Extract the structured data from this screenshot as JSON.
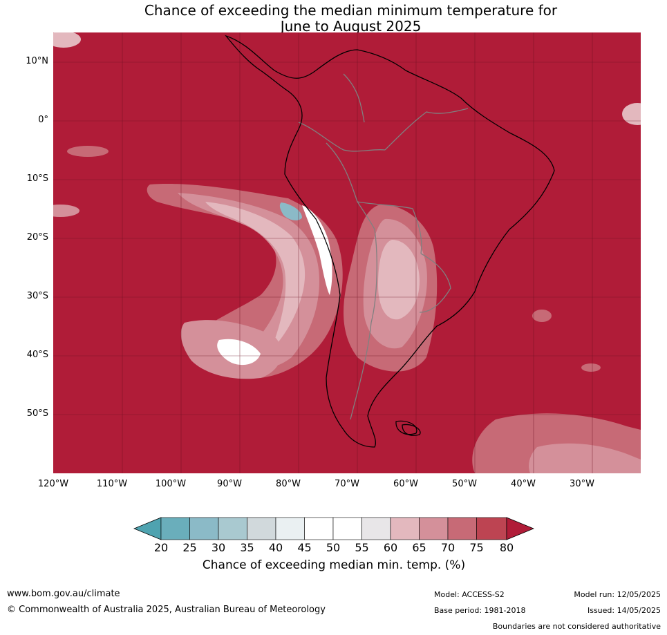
{
  "map": {
    "title_line1": "Chance of exceeding the median minimum temperature for",
    "title_line2": "June to August 2025",
    "lat_labels": [
      "10°N",
      "0°",
      "10°S",
      "20°S",
      "30°S",
      "40°S",
      "50°S"
    ],
    "lon_labels": [
      "120°W",
      "110°W",
      "100°W",
      "90°W",
      "80°W",
      "70°W",
      "60°W",
      "50°W",
      "40°W",
      "30°W"
    ],
    "region": "South America",
    "projection_extent": {
      "lon_min": -120,
      "lon_max": -20,
      "lat_min": -60,
      "lat_max": 15
    },
    "background_class": "80",
    "colors": {
      "ocean_dominant": "#b01c38",
      "coastline": "#000000",
      "borders": "#808080",
      "gridlines": "#6a1020"
    }
  },
  "colorbar": {
    "ticks": [
      "20",
      "25",
      "30",
      "35",
      "40",
      "45",
      "50",
      "55",
      "60",
      "65",
      "70",
      "75",
      "80"
    ],
    "colors": [
      "#4fa3b0",
      "#6aaebb",
      "#8bbac7",
      "#a9c9d0",
      "#d1d9dc",
      "#eaf0f2",
      "#ffffff",
      "#ffffff",
      "#e8e6e8",
      "#e3b8be",
      "#d4909a",
      "#c76a76",
      "#bd4452",
      "#b01c38"
    ],
    "label": "Chance of exceeding median min. temp. (%)"
  },
  "footer": {
    "url": "www.bom.gov.au/climate",
    "copyright": "© Commonwealth of Australia 2025, Australian Bureau of Meteorology",
    "model": "Model: ACCESS-S2",
    "base_period": "Base period: 1981-2018",
    "model_run": "Model run: 12/05/2025",
    "issued": "Issued: 14/05/2025",
    "disclaimer": "Boundaries are not considered authoritative"
  }
}
